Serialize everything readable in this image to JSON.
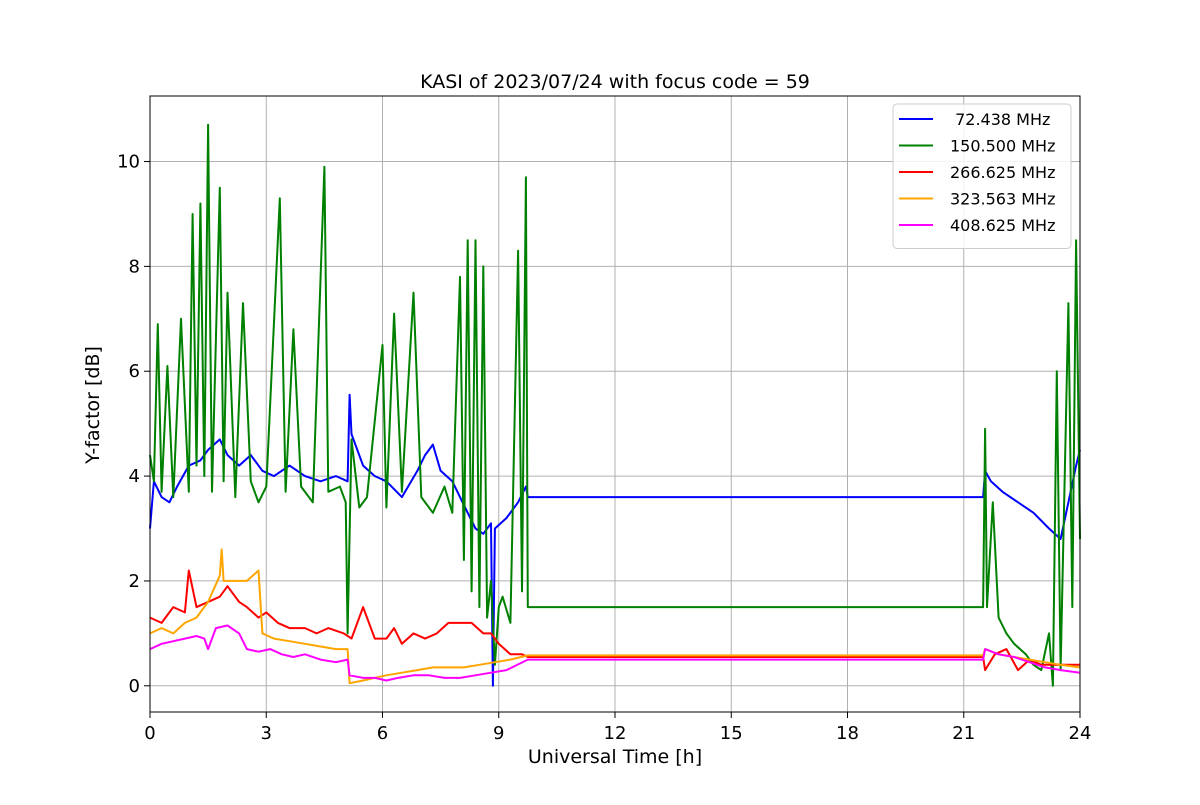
{
  "chart_data": {
    "type": "line",
    "title": "KASI of 2023/07/24 with focus code = 59",
    "xlabel": "Universal Time [h]",
    "ylabel": "Y-factor [dB]",
    "xlim": [
      0,
      24
    ],
    "ylim": [
      -0.5,
      11.25
    ],
    "xticks": [
      0,
      3,
      6,
      9,
      12,
      15,
      18,
      21,
      24
    ],
    "yticks": [
      0,
      2,
      4,
      6,
      8,
      10
    ],
    "grid": true,
    "legend_position": "top-right",
    "series": [
      {
        "name": " 72.438 MHz",
        "color": "#0000ff",
        "points": [
          [
            0,
            3.0
          ],
          [
            0.1,
            3.9
          ],
          [
            0.3,
            3.6
          ],
          [
            0.5,
            3.5
          ],
          [
            0.7,
            3.8
          ],
          [
            1.0,
            4.2
          ],
          [
            1.3,
            4.3
          ],
          [
            1.5,
            4.5
          ],
          [
            1.8,
            4.7
          ],
          [
            2.0,
            4.4
          ],
          [
            2.3,
            4.2
          ],
          [
            2.6,
            4.4
          ],
          [
            2.9,
            4.1
          ],
          [
            3.2,
            4.0
          ],
          [
            3.6,
            4.2
          ],
          [
            4.0,
            4.0
          ],
          [
            4.4,
            3.9
          ],
          [
            4.8,
            4.0
          ],
          [
            5.1,
            3.9
          ],
          [
            5.15,
            5.55
          ],
          [
            5.2,
            4.8
          ],
          [
            5.5,
            4.2
          ],
          [
            5.8,
            4.0
          ],
          [
            6.1,
            3.9
          ],
          [
            6.5,
            3.6
          ],
          [
            6.9,
            4.1
          ],
          [
            7.1,
            4.4
          ],
          [
            7.3,
            4.6
          ],
          [
            7.5,
            4.1
          ],
          [
            7.8,
            3.9
          ],
          [
            8.0,
            3.6
          ],
          [
            8.2,
            3.3
          ],
          [
            8.4,
            3.0
          ],
          [
            8.6,
            2.9
          ],
          [
            8.8,
            3.1
          ],
          [
            8.85,
            0.0
          ],
          [
            8.9,
            3.0
          ],
          [
            9.2,
            3.2
          ],
          [
            9.5,
            3.5
          ],
          [
            9.7,
            3.8
          ],
          [
            9.75,
            3.6
          ],
          [
            21.5,
            3.6
          ],
          [
            21.55,
            4.1
          ],
          [
            21.7,
            3.9
          ],
          [
            22.0,
            3.7
          ],
          [
            22.4,
            3.5
          ],
          [
            22.8,
            3.3
          ],
          [
            23.2,
            3.0
          ],
          [
            23.5,
            2.8
          ],
          [
            23.7,
            3.5
          ],
          [
            23.9,
            4.2
          ],
          [
            24,
            4.5
          ]
        ]
      },
      {
        "name": "150.500 MHz",
        "color": "#008000",
        "points": [
          [
            0,
            4.4
          ],
          [
            0.1,
            3.9
          ],
          [
            0.2,
            6.9
          ],
          [
            0.3,
            3.7
          ],
          [
            0.45,
            6.1
          ],
          [
            0.6,
            3.6
          ],
          [
            0.8,
            7.0
          ],
          [
            1.0,
            3.7
          ],
          [
            1.1,
            9.0
          ],
          [
            1.2,
            4.2
          ],
          [
            1.3,
            9.2
          ],
          [
            1.4,
            4.0
          ],
          [
            1.5,
            10.7
          ],
          [
            1.6,
            3.7
          ],
          [
            1.8,
            9.5
          ],
          [
            1.9,
            3.9
          ],
          [
            2.0,
            7.5
          ],
          [
            2.2,
            3.6
          ],
          [
            2.4,
            7.3
          ],
          [
            2.6,
            3.9
          ],
          [
            2.8,
            3.5
          ],
          [
            3.0,
            3.8
          ],
          [
            3.35,
            9.3
          ],
          [
            3.5,
            3.7
          ],
          [
            3.7,
            6.8
          ],
          [
            3.9,
            3.8
          ],
          [
            4.2,
            3.5
          ],
          [
            4.5,
            9.9
          ],
          [
            4.6,
            3.7
          ],
          [
            4.9,
            3.8
          ],
          [
            5.05,
            3.5
          ],
          [
            5.1,
            1.0
          ],
          [
            5.2,
            4.7
          ],
          [
            5.4,
            3.4
          ],
          [
            5.6,
            3.6
          ],
          [
            6.0,
            6.5
          ],
          [
            6.1,
            3.4
          ],
          [
            6.3,
            7.1
          ],
          [
            6.5,
            3.7
          ],
          [
            6.8,
            7.5
          ],
          [
            7.0,
            3.6
          ],
          [
            7.3,
            3.3
          ],
          [
            7.6,
            3.8
          ],
          [
            7.8,
            3.3
          ],
          [
            8.0,
            7.8
          ],
          [
            8.1,
            2.4
          ],
          [
            8.2,
            8.5
          ],
          [
            8.3,
            1.8
          ],
          [
            8.4,
            8.5
          ],
          [
            8.5,
            1.5
          ],
          [
            8.6,
            8.0
          ],
          [
            8.7,
            1.3
          ],
          [
            8.8,
            2.0
          ],
          [
            8.9,
            0.4
          ],
          [
            9.0,
            1.5
          ],
          [
            9.1,
            1.7
          ],
          [
            9.3,
            1.2
          ],
          [
            9.5,
            8.3
          ],
          [
            9.6,
            1.8
          ],
          [
            9.7,
            9.7
          ],
          [
            9.75,
            1.5
          ],
          [
            21.5,
            1.5
          ],
          [
            21.55,
            4.9
          ],
          [
            21.6,
            1.5
          ],
          [
            21.75,
            3.5
          ],
          [
            21.9,
            1.3
          ],
          [
            22.1,
            1.0
          ],
          [
            22.3,
            0.8
          ],
          [
            22.6,
            0.6
          ],
          [
            22.8,
            0.4
          ],
          [
            23.0,
            0.3
          ],
          [
            23.2,
            1.0
          ],
          [
            23.3,
            0.0
          ],
          [
            23.4,
            6.0
          ],
          [
            23.5,
            0.3
          ],
          [
            23.7,
            7.3
          ],
          [
            23.8,
            1.5
          ],
          [
            23.9,
            8.5
          ],
          [
            24,
            2.8
          ]
        ]
      },
      {
        "name": "266.625 MHz",
        "color": "#ff0000",
        "points": [
          [
            0,
            1.3
          ],
          [
            0.3,
            1.2
          ],
          [
            0.6,
            1.5
          ],
          [
            0.9,
            1.4
          ],
          [
            1.0,
            2.2
          ],
          [
            1.2,
            1.5
          ],
          [
            1.5,
            1.6
          ],
          [
            1.8,
            1.7
          ],
          [
            2.0,
            1.9
          ],
          [
            2.3,
            1.6
          ],
          [
            2.5,
            1.5
          ],
          [
            2.8,
            1.3
          ],
          [
            3.0,
            1.4
          ],
          [
            3.3,
            1.2
          ],
          [
            3.6,
            1.1
          ],
          [
            4.0,
            1.1
          ],
          [
            4.3,
            1.0
          ],
          [
            4.6,
            1.1
          ],
          [
            5.0,
            1.0
          ],
          [
            5.2,
            0.9
          ],
          [
            5.5,
            1.5
          ],
          [
            5.8,
            0.9
          ],
          [
            6.1,
            0.9
          ],
          [
            6.3,
            1.1
          ],
          [
            6.5,
            0.8
          ],
          [
            6.8,
            1.0
          ],
          [
            7.1,
            0.9
          ],
          [
            7.4,
            1.0
          ],
          [
            7.7,
            1.2
          ],
          [
            8.0,
            1.2
          ],
          [
            8.3,
            1.2
          ],
          [
            8.6,
            1.0
          ],
          [
            8.8,
            1.0
          ],
          [
            9.0,
            0.8
          ],
          [
            9.3,
            0.6
          ],
          [
            9.6,
            0.6
          ],
          [
            9.75,
            0.55
          ],
          [
            21.5,
            0.55
          ],
          [
            21.55,
            0.3
          ],
          [
            21.8,
            0.6
          ],
          [
            22.1,
            0.7
          ],
          [
            22.4,
            0.3
          ],
          [
            22.7,
            0.5
          ],
          [
            23.0,
            0.4
          ],
          [
            23.3,
            0.4
          ],
          [
            23.6,
            0.4
          ],
          [
            24,
            0.4
          ]
        ]
      },
      {
        "name": "323.563 MHz",
        "color": "#ffa500",
        "points": [
          [
            0,
            1.0
          ],
          [
            0.3,
            1.1
          ],
          [
            0.6,
            1.0
          ],
          [
            0.9,
            1.2
          ],
          [
            1.2,
            1.3
          ],
          [
            1.5,
            1.6
          ],
          [
            1.8,
            2.1
          ],
          [
            1.85,
            2.6
          ],
          [
            1.9,
            2.0
          ],
          [
            2.2,
            2.0
          ],
          [
            2.5,
            2.0
          ],
          [
            2.8,
            2.2
          ],
          [
            2.9,
            1.0
          ],
          [
            3.2,
            0.9
          ],
          [
            3.6,
            0.85
          ],
          [
            4.0,
            0.8
          ],
          [
            4.4,
            0.75
          ],
          [
            4.8,
            0.7
          ],
          [
            5.1,
            0.7
          ],
          [
            5.15,
            0.05
          ],
          [
            5.5,
            0.1
          ],
          [
            5.8,
            0.15
          ],
          [
            6.1,
            0.2
          ],
          [
            6.5,
            0.25
          ],
          [
            6.9,
            0.3
          ],
          [
            7.3,
            0.35
          ],
          [
            7.7,
            0.35
          ],
          [
            8.1,
            0.35
          ],
          [
            8.5,
            0.4
          ],
          [
            8.9,
            0.45
          ],
          [
            9.3,
            0.5
          ],
          [
            9.75,
            0.58
          ],
          [
            21.5,
            0.58
          ],
          [
            21.55,
            0.7
          ],
          [
            21.9,
            0.6
          ],
          [
            22.3,
            0.55
          ],
          [
            22.7,
            0.5
          ],
          [
            23.1,
            0.45
          ],
          [
            23.5,
            0.4
          ],
          [
            24,
            0.35
          ]
        ]
      },
      {
        "name": "408.625 MHz",
        "color": "#ff00ff",
        "points": [
          [
            0,
            0.7
          ],
          [
            0.3,
            0.8
          ],
          [
            0.6,
            0.85
          ],
          [
            0.9,
            0.9
          ],
          [
            1.2,
            0.95
          ],
          [
            1.4,
            0.9
          ],
          [
            1.5,
            0.7
          ],
          [
            1.7,
            1.1
          ],
          [
            2.0,
            1.15
          ],
          [
            2.3,
            1.0
          ],
          [
            2.5,
            0.7
          ],
          [
            2.8,
            0.65
          ],
          [
            3.1,
            0.7
          ],
          [
            3.4,
            0.6
          ],
          [
            3.7,
            0.55
          ],
          [
            4.0,
            0.6
          ],
          [
            4.4,
            0.5
          ],
          [
            4.8,
            0.45
          ],
          [
            5.1,
            0.5
          ],
          [
            5.15,
            0.2
          ],
          [
            5.5,
            0.15
          ],
          [
            5.8,
            0.15
          ],
          [
            6.1,
            0.1
          ],
          [
            6.4,
            0.15
          ],
          [
            6.8,
            0.2
          ],
          [
            7.2,
            0.2
          ],
          [
            7.6,
            0.15
          ],
          [
            8.0,
            0.15
          ],
          [
            8.4,
            0.2
          ],
          [
            8.8,
            0.25
          ],
          [
            9.2,
            0.3
          ],
          [
            9.75,
            0.5
          ],
          [
            21.5,
            0.5
          ],
          [
            21.55,
            0.7
          ],
          [
            21.9,
            0.6
          ],
          [
            22.3,
            0.55
          ],
          [
            22.7,
            0.45
          ],
          [
            23.1,
            0.35
          ],
          [
            23.5,
            0.3
          ],
          [
            24,
            0.25
          ]
        ]
      }
    ]
  }
}
